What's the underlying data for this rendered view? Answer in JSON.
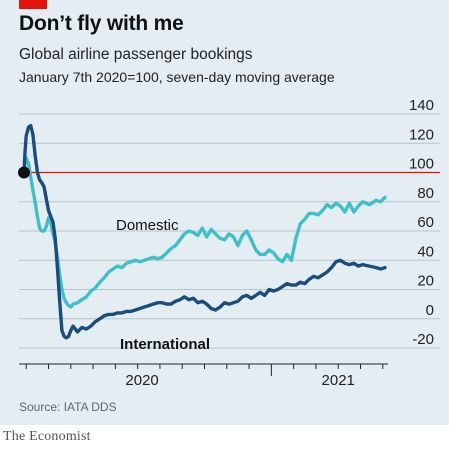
{
  "header": {
    "title": "Don’t fly with me",
    "subtitle": "Global airline passenger bookings",
    "subsubtitle": "January 7th 2020=100, seven-day moving average"
  },
  "footer": {
    "source": "Source: IATA DDS",
    "brand": "The Economist"
  },
  "colors": {
    "background": "#e4eef2",
    "accent_red": "#e3120b",
    "domestic": "#3fbfc8",
    "international": "#1a4d7e"
  },
  "chart_data": {
    "type": "line",
    "title": "Global airline passenger bookings",
    "subtitle": "January 7th 2020=100, seven-day moving average",
    "ylim": [
      -20,
      140
    ],
    "y_ticks": [
      -20,
      0,
      20,
      40,
      60,
      80,
      100,
      120,
      140
    ],
    "y_tick_labels": [
      "-20",
      "0",
      "20",
      "40",
      "60",
      "80",
      "100",
      "120",
      "140"
    ],
    "reference_line": 100,
    "x_tick_labels": [
      "2020",
      "2021"
    ],
    "series": [
      {
        "name": "Domestic",
        "color": "#3fbfc8",
        "x": [
          0,
          0.05,
          0.1,
          0.2,
          0.3,
          0.4,
          0.5,
          0.6,
          0.7,
          0.8,
          0.9,
          1.0,
          1.1,
          1.2,
          1.3,
          1.4,
          1.5,
          1.6,
          1.7,
          1.8,
          1.9,
          2.0,
          2.1,
          2.2,
          2.4,
          2.6,
          2.8,
          3.0,
          3.2,
          3.4,
          3.6,
          3.8,
          4.0,
          4.2,
          4.4,
          4.6,
          4.8,
          5.0,
          5.2,
          5.4,
          5.6,
          5.8,
          6.0,
          6.2,
          6.4,
          6.6,
          6.8,
          7.0,
          7.2,
          7.4,
          7.6,
          7.8,
          8.0,
          8.2,
          8.4,
          8.6,
          8.8,
          9.0,
          9.2,
          9.4,
          9.6,
          9.8,
          10.0,
          10.2,
          10.4,
          10.6,
          10.8,
          11.0,
          11.2,
          11.4,
          11.6,
          11.8,
          12.0,
          12.2,
          12.4,
          12.6,
          12.8,
          13.0,
          13.2,
          13.4,
          13.6,
          13.8,
          14.0,
          14.2,
          14.4,
          14.6,
          14.8,
          15.0,
          15.2,
          15.5,
          15.8,
          16.0,
          16.2
        ],
        "values": [
          100,
          108,
          110,
          106,
          97,
          88,
          80,
          70,
          62,
          60,
          60,
          63,
          69,
          66,
          58,
          52,
          42,
          30,
          20,
          14,
          11,
          9,
          8,
          10,
          11,
          13,
          15,
          19,
          21,
          25,
          28,
          32,
          34,
          36,
          35,
          38,
          39,
          40,
          39,
          40,
          41,
          42,
          41,
          42,
          45,
          48,
          50,
          54,
          58,
          60,
          59,
          57,
          62,
          56,
          61,
          58,
          55,
          54,
          58,
          56,
          50,
          57,
          60,
          54,
          47,
          44,
          44,
          47,
          45,
          41,
          39,
          44,
          40,
          55,
          65,
          68,
          72,
          72,
          71,
          74,
          78,
          76,
          79,
          77,
          73,
          79,
          73,
          77,
          80,
          78,
          81,
          80,
          83
        ]
      },
      {
        "name": "International",
        "color": "#1a4d7e",
        "x": [
          0,
          0.05,
          0.1,
          0.2,
          0.3,
          0.4,
          0.5,
          0.6,
          0.7,
          0.8,
          0.9,
          1.0,
          1.1,
          1.2,
          1.3,
          1.4,
          1.5,
          1.6,
          1.7,
          1.8,
          1.9,
          2.0,
          2.1,
          2.2,
          2.4,
          2.6,
          2.8,
          3.0,
          3.2,
          3.4,
          3.6,
          3.8,
          4.0,
          4.2,
          4.4,
          4.6,
          4.8,
          5.0,
          5.2,
          5.4,
          5.6,
          5.8,
          6.0,
          6.2,
          6.4,
          6.6,
          6.8,
          7.0,
          7.2,
          7.4,
          7.6,
          7.8,
          8.0,
          8.2,
          8.4,
          8.6,
          8.8,
          9.0,
          9.2,
          9.4,
          9.6,
          9.8,
          10.0,
          10.2,
          10.4,
          10.6,
          10.8,
          11.0,
          11.2,
          11.4,
          11.6,
          11.8,
          12.0,
          12.2,
          12.4,
          12.6,
          12.8,
          13.0,
          13.2,
          13.4,
          13.6,
          13.8,
          14.0,
          14.2,
          14.4,
          14.6,
          14.8,
          15.0,
          15.2,
          15.5,
          15.8,
          16.0,
          16.2
        ],
        "values": [
          100,
          115,
          125,
          131,
          132,
          126,
          112,
          100,
          95,
          93,
          90,
          82,
          74,
          70,
          66,
          55,
          35,
          12,
          -8,
          -12,
          -13,
          -12,
          -8,
          -5,
          -9,
          -6,
          -7,
          -5,
          -2,
          0,
          2,
          3,
          3,
          4,
          4,
          5,
          5,
          6,
          7,
          8,
          9,
          10,
          11,
          11,
          10,
          10,
          12,
          13,
          15,
          13,
          14,
          11,
          12,
          10,
          7,
          6,
          8,
          11,
          10,
          11,
          12,
          15,
          16,
          14,
          16,
          18,
          16,
          20,
          19,
          20,
          22,
          24,
          23,
          23,
          25,
          24,
          27,
          29,
          28,
          30,
          32,
          35,
          39,
          40,
          38,
          37,
          38,
          36,
          37,
          36,
          35,
          34,
          35
        ]
      }
    ],
    "start_marker_value": 100,
    "series_labels": [
      "Domestic",
      "International"
    ],
    "grid": "horizontal",
    "legend": "inline labels"
  }
}
